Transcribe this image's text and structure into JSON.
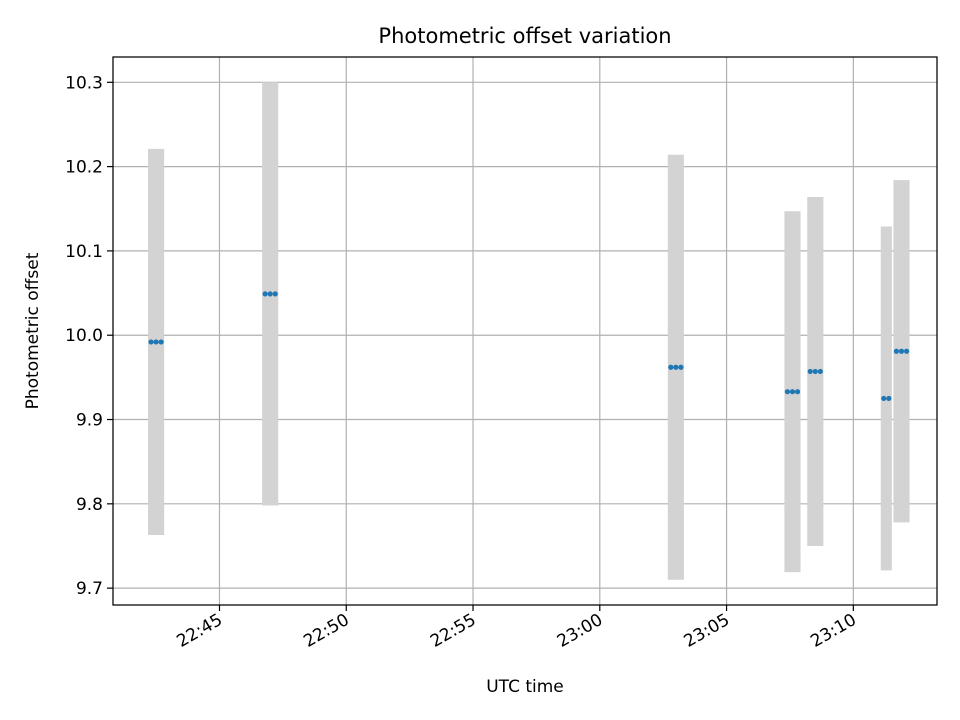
{
  "chart_data": {
    "type": "scatter",
    "title": "Photometric offset variation",
    "xlabel": "UTC time",
    "ylabel": "Photometric offset",
    "x_axis_type": "time",
    "xlim": [
      "22:40:48",
      "23:13:18"
    ],
    "ylim": [
      9.68,
      10.33
    ],
    "grid": true,
    "x_ticks": [
      "22:45",
      "22:50",
      "22:55",
      "23:00",
      "23:05",
      "23:10"
    ],
    "y_ticks": [
      9.7,
      9.8,
      9.9,
      10.0,
      10.1,
      10.2,
      10.3
    ],
    "y_tick_labels": [
      "9.7",
      "9.8",
      "9.9",
      "10.0",
      "10.1",
      "10.2",
      "10.3"
    ],
    "colors": {
      "marker": "#1f77b4",
      "errorbar": "#d3d3d3",
      "grid": "#b0b0b0"
    },
    "series": [
      {
        "points": [
          {
            "x": "22:42:18",
            "y": 9.992,
            "yerr": 0.229
          },
          {
            "x": "22:42:30",
            "y": 9.992,
            "yerr": 0.229
          },
          {
            "x": "22:42:42",
            "y": 9.992,
            "yerr": 0.229
          },
          {
            "x": "22:46:48",
            "y": 10.049,
            "yerr": 0.251
          },
          {
            "x": "22:47:00",
            "y": 10.049,
            "yerr": 0.251
          },
          {
            "x": "22:47:12",
            "y": 10.049,
            "yerr": 0.251
          },
          {
            "x": "23:02:48",
            "y": 9.962,
            "yerr": 0.252
          },
          {
            "x": "23:03:00",
            "y": 9.962,
            "yerr": 0.252
          },
          {
            "x": "23:03:12",
            "y": 9.962,
            "yerr": 0.252
          },
          {
            "x": "23:07:24",
            "y": 9.933,
            "yerr": 0.214
          },
          {
            "x": "23:07:36",
            "y": 9.933,
            "yerr": 0.214
          },
          {
            "x": "23:07:48",
            "y": 9.933,
            "yerr": 0.214
          },
          {
            "x": "23:08:18",
            "y": 9.957,
            "yerr": 0.207
          },
          {
            "x": "23:08:30",
            "y": 9.957,
            "yerr": 0.207
          },
          {
            "x": "23:08:42",
            "y": 9.957,
            "yerr": 0.207
          },
          {
            "x": "23:11:12",
            "y": 9.925,
            "yerr": 0.204
          },
          {
            "x": "23:11:24",
            "y": 9.925,
            "yerr": 0.204
          },
          {
            "x": "23:11:42",
            "y": 9.981,
            "yerr": 0.203
          },
          {
            "x": "23:11:54",
            "y": 9.981,
            "yerr": 0.203
          },
          {
            "x": "23:12:06",
            "y": 9.981,
            "yerr": 0.203
          }
        ]
      }
    ]
  }
}
